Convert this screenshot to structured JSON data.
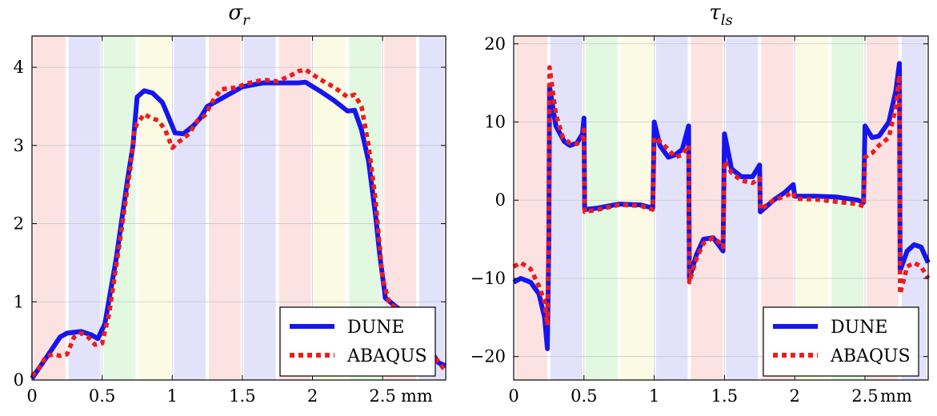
{
  "chart_data": [
    {
      "type": "line",
      "title": "σ",
      "title_sub": "r",
      "x_unit": "mm",
      "xlim": [
        0,
        2.95
      ],
      "ylim": [
        0,
        4.4
      ],
      "x_ticks": [
        {
          "value": 0,
          "label": "0"
        },
        {
          "value": 0.5,
          "label": "0.5"
        },
        {
          "value": 1,
          "label": "1"
        },
        {
          "value": 1.5,
          "label": "1.5"
        },
        {
          "value": 2,
          "label": "2"
        },
        {
          "value": 2.5,
          "label": "2.5"
        }
      ],
      "y_ticks": [
        {
          "value": 0,
          "label": "0"
        },
        {
          "value": 1,
          "label": "1"
        },
        {
          "value": 2,
          "label": "2"
        },
        {
          "value": 3,
          "label": "3"
        },
        {
          "value": 4,
          "label": "4"
        }
      ],
      "layer_bands": {
        "boundaries": [
          0,
          0.25,
          0.5,
          0.75,
          1.0,
          1.25,
          1.5,
          1.75,
          2.0,
          2.25,
          2.5,
          2.75,
          2.95
        ],
        "colors": [
          "#fde2e2",
          "#e2e3fb",
          "#e3f8e1",
          "#fbfbe3",
          "#e2e3fb",
          "#fde2e2",
          "#e2e3fb",
          "#fde2e2",
          "#fbfbe3",
          "#e3f8e1",
          "#fde2e2",
          "#e2e3fb"
        ]
      },
      "legend": {
        "position": "bottom-right",
        "entries": [
          "DUNE",
          "ABAQUS"
        ]
      },
      "series": [
        {
          "name": "DUNE",
          "color": "#1515f0",
          "style": "solid",
          "points": [
            [
              0,
              0.02
            ],
            [
              0.1,
              0.28
            ],
            [
              0.2,
              0.55
            ],
            [
              0.25,
              0.6
            ],
            [
              0.35,
              0.62
            ],
            [
              0.42,
              0.58
            ],
            [
              0.47,
              0.53
            ],
            [
              0.52,
              0.72
            ],
            [
              0.6,
              1.55
            ],
            [
              0.68,
              2.55
            ],
            [
              0.72,
              3.0
            ],
            [
              0.75,
              3.62
            ],
            [
              0.8,
              3.7
            ],
            [
              0.86,
              3.67
            ],
            [
              0.93,
              3.55
            ],
            [
              0.97,
              3.38
            ],
            [
              1.02,
              3.16
            ],
            [
              1.08,
              3.15
            ],
            [
              1.15,
              3.25
            ],
            [
              1.2,
              3.35
            ],
            [
              1.25,
              3.5
            ],
            [
              1.35,
              3.6
            ],
            [
              1.5,
              3.75
            ],
            [
              1.65,
              3.8
            ],
            [
              1.75,
              3.8
            ],
            [
              1.9,
              3.8
            ],
            [
              1.95,
              3.81
            ],
            [
              2.05,
              3.7
            ],
            [
              2.15,
              3.58
            ],
            [
              2.25,
              3.44
            ],
            [
              2.3,
              3.45
            ],
            [
              2.35,
              3.2
            ],
            [
              2.4,
              2.8
            ],
            [
              2.45,
              2.1
            ],
            [
              2.48,
              1.6
            ],
            [
              2.52,
              1.05
            ],
            [
              2.6,
              0.93
            ],
            [
              2.7,
              0.82
            ],
            [
              2.78,
              0.6
            ],
            [
              2.85,
              0.35
            ],
            [
              2.9,
              0.22
            ],
            [
              2.95,
              0.18
            ]
          ]
        },
        {
          "name": "ABAQUS",
          "color": "#ee1c1c",
          "style": "dotted",
          "points": [
            [
              0,
              0.05
            ],
            [
              0.05,
              0.15
            ],
            [
              0.1,
              0.3
            ],
            [
              0.15,
              0.33
            ],
            [
              0.2,
              0.31
            ],
            [
              0.25,
              0.33
            ],
            [
              0.3,
              0.55
            ],
            [
              0.35,
              0.6
            ],
            [
              0.4,
              0.55
            ],
            [
              0.45,
              0.45
            ],
            [
              0.5,
              0.47
            ],
            [
              0.55,
              0.85
            ],
            [
              0.62,
              1.7
            ],
            [
              0.7,
              2.7
            ],
            [
              0.73,
              3.2
            ],
            [
              0.75,
              3.28
            ],
            [
              0.8,
              3.4
            ],
            [
              0.85,
              3.35
            ],
            [
              0.9,
              3.32
            ],
            [
              0.95,
              3.2
            ],
            [
              1.0,
              2.97
            ],
            [
              1.05,
              3.05
            ],
            [
              1.12,
              3.15
            ],
            [
              1.18,
              3.32
            ],
            [
              1.23,
              3.38
            ],
            [
              1.3,
              3.6
            ],
            [
              1.35,
              3.72
            ],
            [
              1.45,
              3.74
            ],
            [
              1.55,
              3.8
            ],
            [
              1.65,
              3.84
            ],
            [
              1.75,
              3.82
            ],
            [
              1.85,
              3.9
            ],
            [
              1.9,
              3.95
            ],
            [
              1.95,
              3.97
            ],
            [
              2.05,
              3.85
            ],
            [
              2.15,
              3.75
            ],
            [
              2.25,
              3.62
            ],
            [
              2.3,
              3.65
            ],
            [
              2.35,
              3.5
            ],
            [
              2.4,
              3.0
            ],
            [
              2.45,
              2.3
            ],
            [
              2.5,
              1.3
            ],
            [
              2.55,
              0.97
            ],
            [
              2.65,
              0.88
            ],
            [
              2.75,
              0.68
            ],
            [
              2.82,
              0.48
            ],
            [
              2.88,
              0.28
            ],
            [
              2.92,
              0.18
            ],
            [
              2.95,
              0.12
            ]
          ]
        }
      ]
    },
    {
      "type": "line",
      "title": "τ",
      "title_sub": "ls",
      "x_unit": "mm",
      "xlim": [
        0,
        2.95
      ],
      "ylim": [
        -23,
        21
      ],
      "x_ticks": [
        {
          "value": 0,
          "label": "0"
        },
        {
          "value": 0.5,
          "label": "0.5"
        },
        {
          "value": 1,
          "label": "1"
        },
        {
          "value": 1.5,
          "label": "1.5"
        },
        {
          "value": 2,
          "label": "2"
        },
        {
          "value": 2.5,
          "label": "2.5"
        }
      ],
      "y_ticks": [
        {
          "value": 20,
          "label": "20"
        },
        {
          "value": 10,
          "label": "10"
        },
        {
          "value": 0,
          "label": "0"
        },
        {
          "value": -10,
          "label": "−10"
        },
        {
          "value": -20,
          "label": "−20"
        }
      ],
      "layer_bands": {
        "boundaries": [
          0,
          0.25,
          0.5,
          0.75,
          1.0,
          1.25,
          1.5,
          1.75,
          2.0,
          2.25,
          2.5,
          2.75,
          2.95
        ],
        "colors": [
          "#fde2e2",
          "#e2e3fb",
          "#e3f8e1",
          "#fbfbe3",
          "#e2e3fb",
          "#fde2e2",
          "#e2e3fb",
          "#fde2e2",
          "#fbfbe3",
          "#e3f8e1",
          "#fde2e2",
          "#e2e3fb"
        ]
      },
      "legend": {
        "position": "bottom-right",
        "entries": [
          "DUNE",
          "ABAQUS"
        ]
      },
      "series": [
        {
          "name": "DUNE",
          "color": "#1515f0",
          "style": "solid",
          "points": [
            [
              0,
              -10.5
            ],
            [
              0.05,
              -10
            ],
            [
              0.12,
              -10.5
            ],
            [
              0.18,
              -12
            ],
            [
              0.22,
              -15
            ],
            [
              0.24,
              -19
            ],
            [
              0.25,
              -5
            ],
            [
              0.255,
              14.5
            ],
            [
              0.3,
              9.5
            ],
            [
              0.36,
              7.5
            ],
            [
              0.4,
              7
            ],
            [
              0.45,
              7.3
            ],
            [
              0.49,
              8.5
            ],
            [
              0.5,
              10.5
            ],
            [
              0.505,
              -1.2
            ],
            [
              0.6,
              -1
            ],
            [
              0.75,
              -0.5
            ],
            [
              0.9,
              -0.6
            ],
            [
              0.99,
              -1
            ],
            [
              1.0,
              10
            ],
            [
              1.04,
              7
            ],
            [
              1.1,
              5.5
            ],
            [
              1.15,
              5.8
            ],
            [
              1.2,
              6.5
            ],
            [
              1.245,
              9.5
            ],
            [
              1.25,
              -10
            ],
            [
              1.3,
              -7
            ],
            [
              1.35,
              -5
            ],
            [
              1.42,
              -4.8
            ],
            [
              1.47,
              -6
            ],
            [
              1.49,
              -6.5
            ],
            [
              1.5,
              8.5
            ],
            [
              1.55,
              4
            ],
            [
              1.62,
              3
            ],
            [
              1.7,
              3
            ],
            [
              1.75,
              4.5
            ],
            [
              1.755,
              -1.5
            ],
            [
              1.85,
              0
            ],
            [
              1.93,
              1
            ],
            [
              1.99,
              2
            ],
            [
              2.0,
              0.5
            ],
            [
              2.15,
              0.5
            ],
            [
              2.3,
              0.4
            ],
            [
              2.45,
              0
            ],
            [
              2.49,
              -0.3
            ],
            [
              2.5,
              9.5
            ],
            [
              2.55,
              8
            ],
            [
              2.6,
              8.2
            ],
            [
              2.67,
              10
            ],
            [
              2.72,
              14
            ],
            [
              2.745,
              17.5
            ],
            [
              2.75,
              -9
            ],
            [
              2.8,
              -6.5
            ],
            [
              2.85,
              -5.7
            ],
            [
              2.9,
              -6
            ],
            [
              2.95,
              -8
            ]
          ]
        },
        {
          "name": "ABAQUS",
          "color": "#ee1c1c",
          "style": "dotted",
          "points": [
            [
              0,
              -8.5
            ],
            [
              0.05,
              -8
            ],
            [
              0.12,
              -8.8
            ],
            [
              0.18,
              -11
            ],
            [
              0.22,
              -13
            ],
            [
              0.24,
              -16
            ],
            [
              0.25,
              -3
            ],
            [
              0.255,
              17
            ],
            [
              0.3,
              11
            ],
            [
              0.35,
              8
            ],
            [
              0.4,
              7.3
            ],
            [
              0.45,
              7.2
            ],
            [
              0.49,
              7.8
            ],
            [
              0.5,
              9
            ],
            [
              0.505,
              -1.5
            ],
            [
              0.6,
              -1.2
            ],
            [
              0.75,
              -0.6
            ],
            [
              0.9,
              -0.7
            ],
            [
              0.99,
              -1.2
            ],
            [
              1.0,
              8
            ],
            [
              1.04,
              7.5
            ],
            [
              1.1,
              6.5
            ],
            [
              1.15,
              5.5
            ],
            [
              1.2,
              5.8
            ],
            [
              1.245,
              7
            ],
            [
              1.25,
              -10.5
            ],
            [
              1.3,
              -7.5
            ],
            [
              1.35,
              -5.5
            ],
            [
              1.42,
              -4.8
            ],
            [
              1.47,
              -5.5
            ],
            [
              1.49,
              -6
            ],
            [
              1.5,
              5
            ],
            [
              1.55,
              3.5
            ],
            [
              1.62,
              2.5
            ],
            [
              1.7,
              2.2
            ],
            [
              1.75,
              2.8
            ],
            [
              1.755,
              -1.2
            ],
            [
              1.85,
              0
            ],
            [
              1.93,
              0.5
            ],
            [
              1.99,
              1
            ],
            [
              2.0,
              0.2
            ],
            [
              2.15,
              0.1
            ],
            [
              2.3,
              -0.2
            ],
            [
              2.45,
              -0.5
            ],
            [
              2.49,
              -0.8
            ],
            [
              2.5,
              5.5
            ],
            [
              2.55,
              6
            ],
            [
              2.6,
              7
            ],
            [
              2.67,
              8
            ],
            [
              2.72,
              12
            ],
            [
              2.745,
              16
            ],
            [
              2.75,
              -12
            ],
            [
              2.8,
              -8.5
            ],
            [
              2.85,
              -8
            ],
            [
              2.9,
              -8.5
            ],
            [
              2.95,
              -10
            ]
          ]
        }
      ]
    }
  ]
}
